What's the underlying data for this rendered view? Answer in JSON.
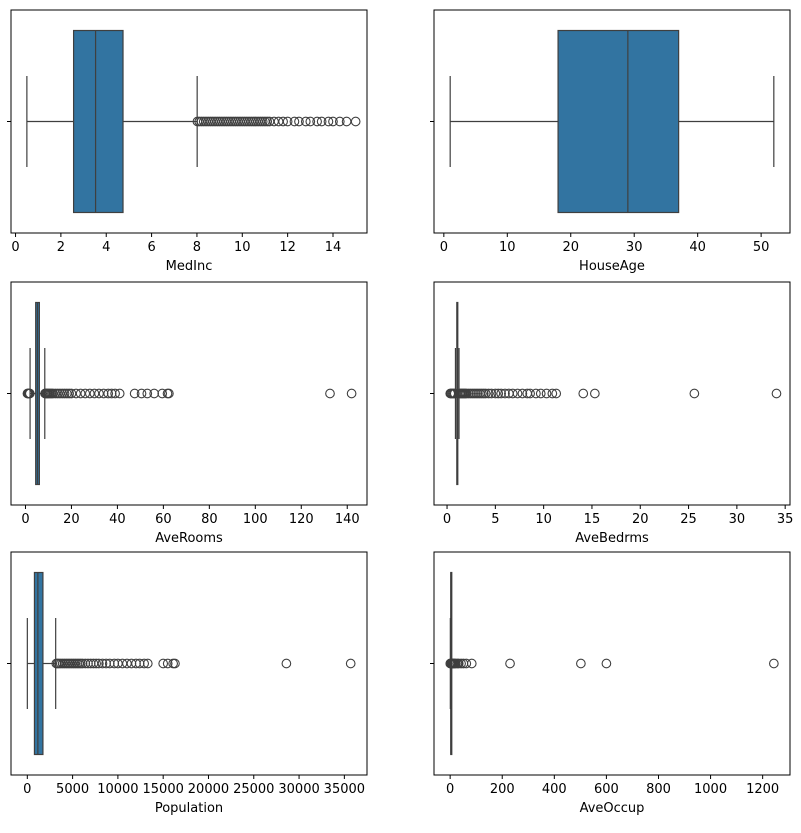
{
  "chart_data": [
    {
      "type": "box",
      "xlabel": "MedInc",
      "xlim": [
        -0.2,
        15.5
      ],
      "ticks": [
        0,
        2,
        4,
        6,
        8,
        10,
        12,
        14
      ],
      "tick_labels": [
        "0",
        "2",
        "4",
        "6",
        "8",
        "10",
        "12",
        "14"
      ],
      "stats": {
        "whislo": 0.5,
        "q1": 2.56,
        "med": 3.53,
        "q3": 4.74,
        "whishi": 8.01
      },
      "fliers": [
        8.02,
        8.1,
        8.2,
        8.3,
        8.4,
        8.5,
        8.6,
        8.7,
        8.8,
        8.9,
        9.0,
        9.1,
        9.2,
        9.3,
        9.4,
        9.5,
        9.6,
        9.7,
        9.8,
        9.9,
        10.0,
        10.1,
        10.2,
        10.3,
        10.4,
        10.5,
        10.6,
        10.7,
        10.8,
        10.9,
        11.0,
        11.1,
        11.2,
        11.4,
        11.6,
        11.8,
        12.0,
        12.3,
        12.5,
        12.8,
        13.0,
        13.3,
        13.5,
        13.8,
        14.0,
        14.3,
        14.6,
        15.0
      ]
    },
    {
      "type": "box",
      "xlabel": "HouseAge",
      "xlim": [
        -1.55,
        54.55
      ],
      "ticks": [
        0,
        10,
        20,
        30,
        40,
        50
      ],
      "tick_labels": [
        "0",
        "10",
        "20",
        "30",
        "40",
        "50"
      ],
      "stats": {
        "whislo": 1,
        "q1": 18,
        "med": 29,
        "q3": 37,
        "whishi": 52
      },
      "fliers": []
    },
    {
      "type": "box",
      "xlabel": "AveRooms",
      "xlim": [
        -6.3,
        148.6
      ],
      "ticks": [
        0,
        20,
        40,
        60,
        80,
        100,
        120,
        140
      ],
      "tick_labels": [
        "0",
        "20",
        "40",
        "60",
        "80",
        "100",
        "120",
        "140"
      ],
      "stats": {
        "whislo": 2.0,
        "q1": 4.44,
        "med": 5.23,
        "q3": 6.05,
        "whishi": 8.4
      },
      "fliers": [
        0.85,
        1.1,
        1.4,
        1.7,
        1.9,
        8.5,
        8.8,
        9.2,
        9.6,
        10.0,
        10.5,
        11.0,
        11.5,
        12.0,
        13.0,
        14.0,
        15.0,
        16.0,
        17.0,
        18.0,
        19.0,
        20.0,
        22.0,
        24.0,
        26.0,
        28.0,
        30.0,
        32.0,
        34.0,
        36.0,
        37.5,
        39.0,
        41.0,
        47.5,
        50.5,
        53.0,
        56.0,
        59.5,
        61.8,
        62.4,
        132.5,
        141.9
      ]
    },
    {
      "type": "box",
      "xlabel": "AveBedrms",
      "xlim": [
        -1.35,
        35.5
      ],
      "ticks": [
        0,
        5,
        10,
        15,
        20,
        25,
        30,
        35
      ],
      "tick_labels": [
        "0",
        "5",
        "10",
        "15",
        "20",
        "25",
        "30",
        "35"
      ],
      "stats": {
        "whislo": 0.87,
        "q1": 1.01,
        "med": 1.05,
        "q3": 1.1,
        "whishi": 1.24
      },
      "fliers": [
        0.33,
        0.4,
        0.5,
        0.6,
        0.7,
        0.8,
        1.3,
        1.4,
        1.5,
        1.6,
        1.7,
        1.8,
        1.9,
        2.0,
        2.2,
        2.4,
        2.6,
        2.8,
        3.0,
        3.2,
        3.4,
        3.6,
        3.8,
        4.0,
        4.3,
        4.6,
        5.0,
        5.3,
        5.6,
        6.0,
        6.4,
        6.8,
        7.3,
        7.8,
        8.3,
        8.6,
        9.2,
        9.7,
        10.3,
        10.9,
        11.3,
        14.1,
        15.3,
        25.6,
        34.1
      ]
    },
    {
      "type": "box",
      "xlabel": "Population",
      "xlim": [
        -1800,
        37500
      ],
      "ticks": [
        0,
        5000,
        10000,
        15000,
        20000,
        25000,
        30000,
        35000
      ],
      "tick_labels": [
        "0",
        "5000",
        "10000",
        "15000",
        "20000",
        "25000",
        "30000",
        "35000"
      ],
      "stats": {
        "whislo": 3,
        "q1": 787,
        "med": 1166,
        "q3": 1725,
        "whishi": 3132
      },
      "fliers": [
        3200,
        3350,
        3500,
        3700,
        3900,
        4100,
        4300,
        4500,
        4700,
        4900,
        5100,
        5300,
        5500,
        5700,
        5900,
        6100,
        6400,
        6700,
        7000,
        7300,
        7600,
        7900,
        8300,
        8700,
        9100,
        9600,
        10000,
        10500,
        11000,
        11500,
        12000,
        12400,
        12900,
        13300,
        15000,
        15500,
        16100,
        16300,
        28600,
        35700
      ]
    },
    {
      "type": "box",
      "xlabel": "AveOccup",
      "xlim": [
        -62,
        1305
      ],
      "ticks": [
        0,
        200,
        400,
        600,
        800,
        1000,
        1200
      ],
      "tick_labels": [
        "0",
        "200",
        "400",
        "600",
        "800",
        "1000",
        "1200"
      ],
      "stats": {
        "whislo": 0.7,
        "q1": 2.43,
        "med": 2.82,
        "q3": 3.28,
        "whishi": 4.56
      },
      "fliers": [
        0.69,
        0.75,
        4.6,
        5.0,
        6.0,
        7.0,
        8.0,
        10.0,
        12.0,
        15.0,
        18.0,
        22.0,
        28.0,
        33.0,
        42.0,
        51.0,
        62.0,
        83.0,
        230.0,
        502.0,
        600.0,
        1243.0
      ]
    }
  ]
}
